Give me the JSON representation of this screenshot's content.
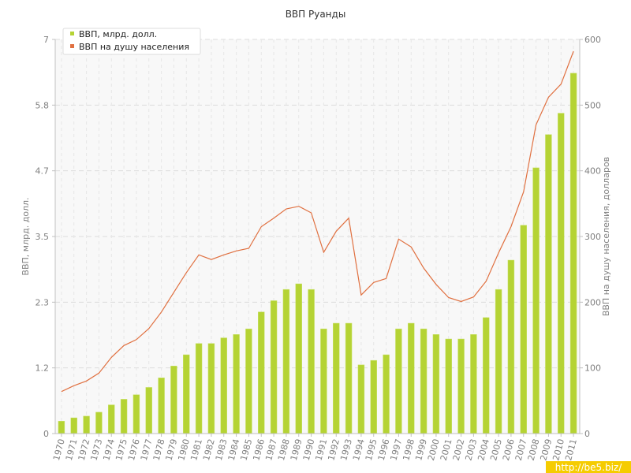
{
  "chart_data": {
    "type": "bar",
    "title": "ВВП Руанды",
    "categories": [
      "1970",
      "1971",
      "1972",
      "1973",
      "1974",
      "1975",
      "1976",
      "1977",
      "1978",
      "1979",
      "1980",
      "1981",
      "1982",
      "1983",
      "1984",
      "1985",
      "1986",
      "1987",
      "1988",
      "1989",
      "1990",
      "1991",
      "1992",
      "1993",
      "1994",
      "1995",
      "1996",
      "1997",
      "1998",
      "1999",
      "2000",
      "2001",
      "2002",
      "2003",
      "2004",
      "2005",
      "2006",
      "2007",
      "2008",
      "2009",
      "2010",
      "2011"
    ],
    "ylabel_left": "ВВП, млрд. долл.",
    "ylabel_right": "ВВП на душу населения, долларов",
    "y_left_ticks": [
      "0",
      "1.2",
      "2.3",
      "3.5",
      "4.7",
      "5.8",
      "7"
    ],
    "y_left_lim": [
      0,
      7
    ],
    "y_right_ticks": [
      "0",
      "100",
      "200",
      "300",
      "400",
      "500",
      "600"
    ],
    "y_right_lim": [
      0,
      600
    ],
    "grid": true,
    "legend_position": "top-left",
    "series": [
      {
        "name": "ВВП, млрд. долл.",
        "type": "bar",
        "axis": "left",
        "color": "#b5d334",
        "values": [
          0.22,
          0.28,
          0.31,
          0.38,
          0.51,
          0.61,
          0.69,
          0.82,
          0.99,
          1.2,
          1.4,
          1.6,
          1.6,
          1.7,
          1.76,
          1.86,
          2.16,
          2.36,
          2.56,
          2.66,
          2.56,
          1.86,
          1.96,
          1.96,
          1.22,
          1.3,
          1.4,
          1.86,
          1.96,
          1.86,
          1.76,
          1.68,
          1.68,
          1.76,
          2.06,
          2.56,
          3.08,
          3.7,
          4.72,
          5.31,
          5.69,
          6.4
        ]
      },
      {
        "name": "ВВП на душу населения",
        "type": "line",
        "axis": "right",
        "color": "#e07040",
        "values": [
          64,
          73,
          80,
          92,
          116,
          134,
          143,
          160,
          185,
          215,
          245,
          272,
          265,
          272,
          278,
          282,
          315,
          328,
          342,
          346,
          336,
          276,
          308,
          328,
          211,
          230,
          236,
          296,
          284,
          252,
          227,
          207,
          201,
          208,
          232,
          275,
          315,
          368,
          470,
          512,
          532,
          582
        ]
      }
    ],
    "watermark": "http://be5.biz/"
  }
}
